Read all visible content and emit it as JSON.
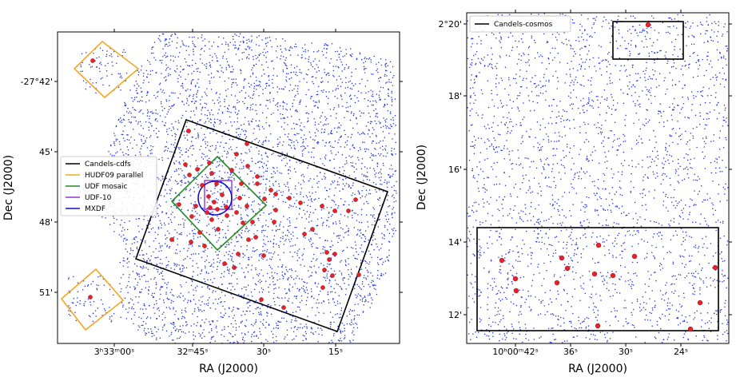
{
  "colors": {
    "points": "#2233dd",
    "objects": "#e8202a",
    "candels": "#000000",
    "hudf_parallel": "#f5a623",
    "udf_mosaic": "#1f8c1f",
    "udf10": "#9b30d9",
    "mxdf": "#1010c8"
  },
  "chart_data": [
    {
      "type": "scatter",
      "title": "",
      "xlabel": "RA (J2000)",
      "ylabel": "Dec (J2000)",
      "x_tick_labels": [
        "3ʰ33ᵐ00ˢ",
        "32ᵐ45ˢ",
        "30ˢ",
        "15ˢ"
      ],
      "y_tick_labels": [
        "-27°42'",
        "45'",
        "48'",
        "51'"
      ],
      "legend": {
        "placement": "center-left",
        "entries": [
          {
            "label": "Candels-cdfs",
            "color": "#000000"
          },
          {
            "label": "HUDF09 parallel",
            "color": "#f5a623"
          },
          {
            "label": "UDF mosaic",
            "color": "#1f8c1f"
          },
          {
            "label": "UDF-10",
            "color": "#9b30d9"
          },
          {
            "label": "MXDF",
            "color": "#1010c8"
          }
        ]
      },
      "series": [
        {
          "name": "field sources",
          "marker": "small blue dots",
          "approx_count": 4200
        },
        {
          "name": "selected objects",
          "marker": "red filled circles",
          "approx_count": 75
        }
      ],
      "regions": [
        "Candels-cdfs",
        "HUDF09 parallel (2)",
        "UDF mosaic",
        "UDF-10",
        "MXDF"
      ]
    },
    {
      "type": "scatter",
      "title": "",
      "xlabel": "RA (J2000)",
      "ylabel": "Dec (J2000)",
      "x_tick_labels": [
        "10ʰ00ᵐ42ˢ",
        "36ˢ",
        "30ˢ",
        "24ˢ"
      ],
      "y_tick_labels": [
        "2°20'",
        "18'",
        "16'",
        "14'",
        "12'"
      ],
      "legend": {
        "placement": "top-left",
        "entries": [
          {
            "label": "Candels-cosmos",
            "color": "#000000"
          }
        ]
      },
      "series": [
        {
          "name": "field sources",
          "marker": "small blue dots",
          "approx_count": 2600
        },
        {
          "name": "selected objects",
          "marker": "red filled circles",
          "approx_count": 16
        }
      ],
      "regions": [
        "Candels-cosmos (2)"
      ]
    }
  ]
}
